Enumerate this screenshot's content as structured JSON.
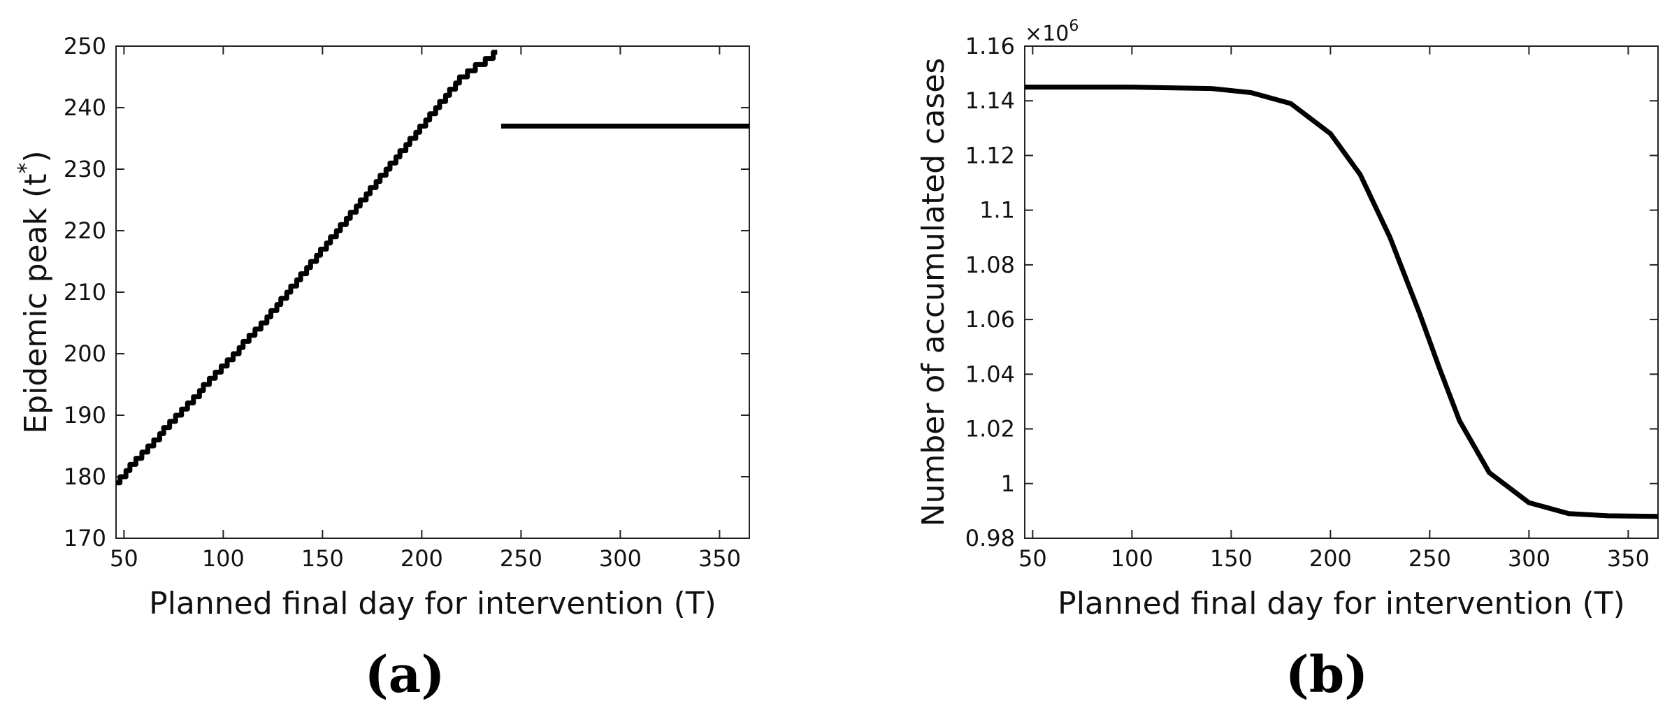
{
  "chart_data": [
    {
      "type": "line",
      "panel_label": "(a)",
      "xlabel": "Planned final day for intervention (T)",
      "ylabel": "Epidemic peak (t*)",
      "ylabel_base": "Epidemic peak (t",
      "ylabel_sup": "*",
      "ylabel_close": ")",
      "xlim": [
        46,
        365
      ],
      "ylim": [
        170,
        250
      ],
      "xticks": [
        50,
        100,
        150,
        200,
        250,
        300,
        350
      ],
      "yticks": [
        170,
        180,
        190,
        200,
        210,
        220,
        230,
        240,
        250
      ],
      "grid": false,
      "step": true,
      "series": [
        {
          "segments": [
            {
              "x": [
                46,
                60,
                80,
                100,
                120,
                140,
                160,
                180,
                200,
                220,
                238
              ],
              "y": [
                179,
                184,
                191,
                198,
                205,
                213,
                221,
                229,
                237,
                245,
                249
              ]
            },
            {
              "x": [
                240,
                365
              ],
              "y": [
                237,
                237
              ]
            }
          ]
        }
      ]
    },
    {
      "type": "line",
      "panel_label": "(b)",
      "xlabel": "Planned final day for intervention (T)",
      "ylabel": "Number of accumulated cases",
      "exponent_label": "×10",
      "exponent_sup": "6",
      "xlim": [
        46,
        365
      ],
      "ylim": [
        0.98,
        1.16
      ],
      "xticks": [
        50,
        100,
        150,
        200,
        250,
        300,
        350
      ],
      "yticks": [
        0.98,
        1,
        1.02,
        1.04,
        1.06,
        1.08,
        1.1,
        1.12,
        1.14,
        1.16
      ],
      "ytick_labels": [
        "0.98",
        "1",
        "1.02",
        "1.04",
        "1.06",
        "1.08",
        "1.1",
        "1.12",
        "1.14",
        "1.16"
      ],
      "grid": false,
      "series": [
        {
          "segments": [
            {
              "x": [
                46,
                100,
                140,
                160,
                180,
                200,
                215,
                230,
                245,
                255,
                265,
                280,
                300,
                320,
                340,
                365
              ],
              "y": [
                1.145,
                1.145,
                1.1445,
                1.143,
                1.139,
                1.128,
                1.113,
                1.09,
                1.062,
                1.042,
                1.023,
                1.004,
                0.993,
                0.989,
                0.9882,
                0.988
              ]
            }
          ]
        }
      ]
    }
  ]
}
